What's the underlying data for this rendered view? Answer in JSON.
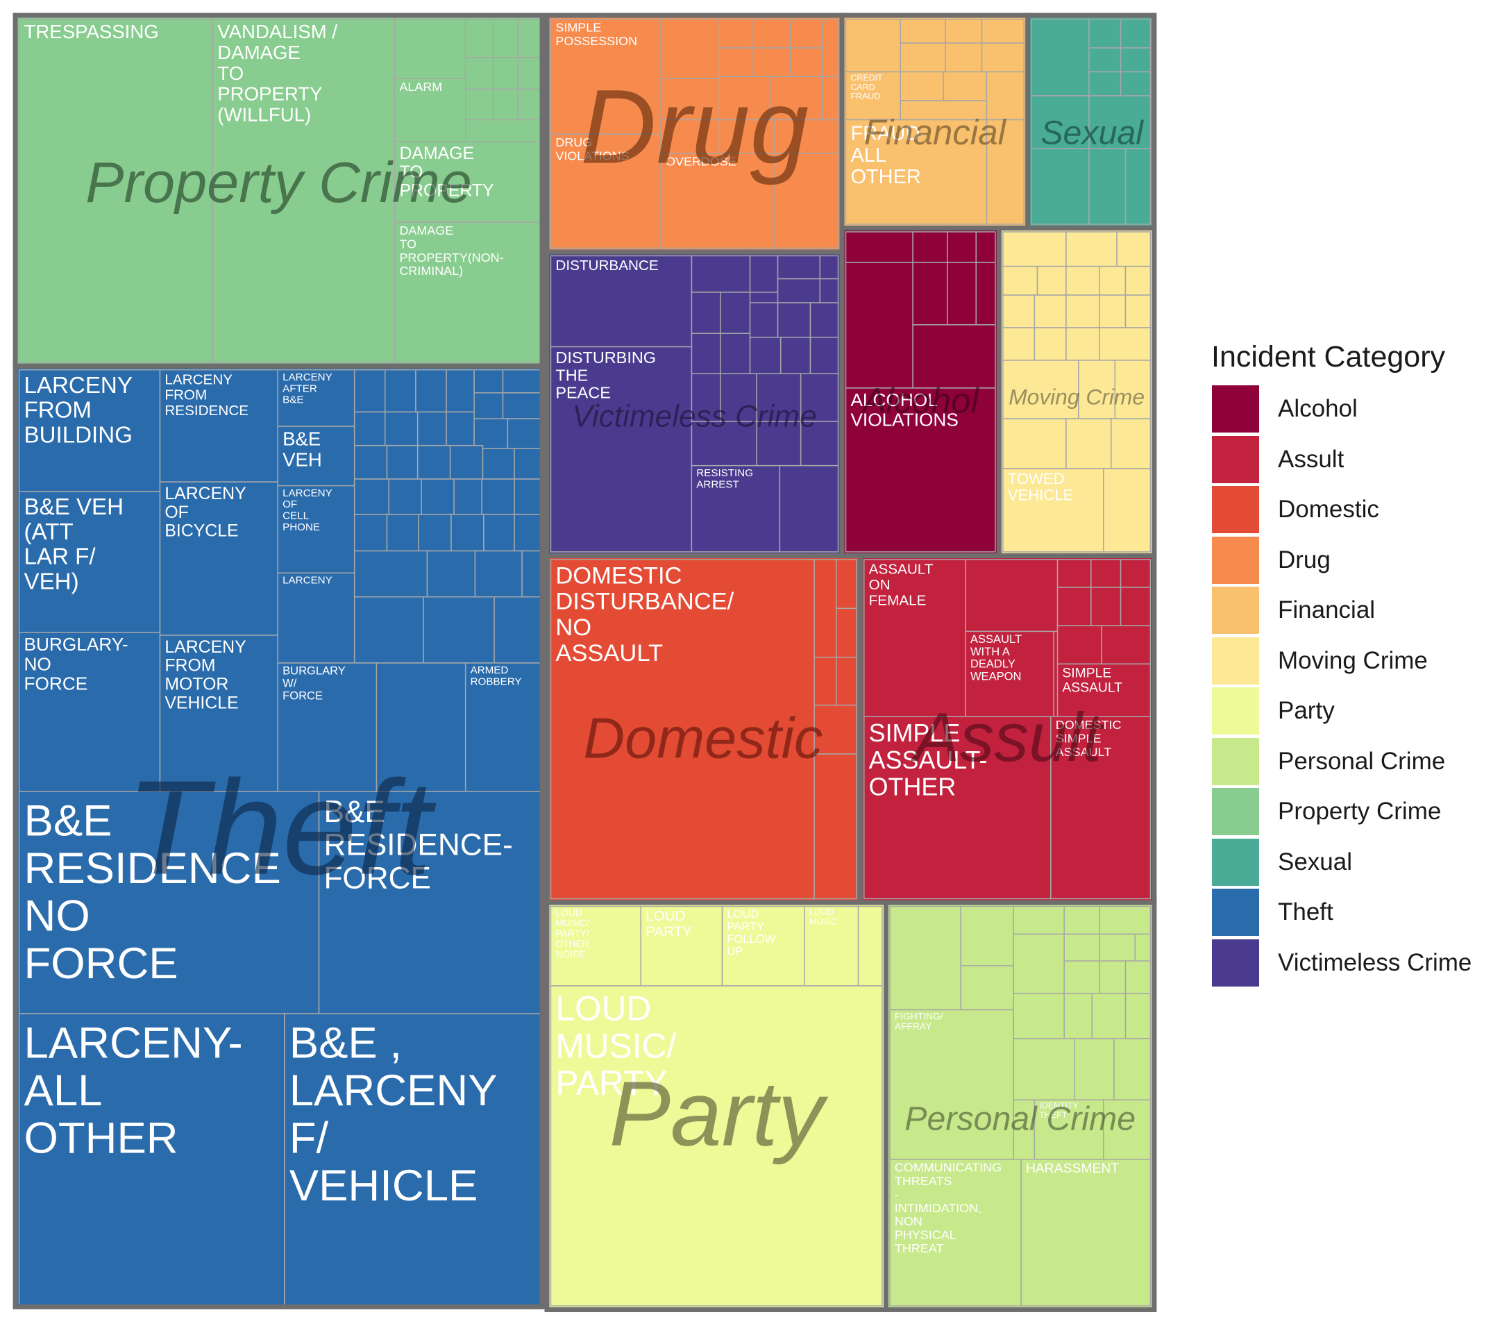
{
  "chart_data": {
    "type": "treemap",
    "legend": {
      "title": "Incident Category",
      "position": "right",
      "items": [
        {
          "label": "Alcohol",
          "color": "#8e0139"
        },
        {
          "label": "Assult",
          "color": "#c2223e"
        },
        {
          "label": "Domestic",
          "color": "#e44b35"
        },
        {
          "label": "Drug",
          "color": "#f78b4e"
        },
        {
          "label": "Financial",
          "color": "#f9c06e"
        },
        {
          "label": "Moving Crime",
          "color": "#fde896"
        },
        {
          "label": "Party",
          "color": "#eefa97"
        },
        {
          "label": "Personal Crime",
          "color": "#c7e98b"
        },
        {
          "label": "Property Crime",
          "color": "#88cd8f"
        },
        {
          "label": "Sexual",
          "color": "#4aab97"
        },
        {
          "label": "Theft",
          "color": "#2a6bac"
        },
        {
          "label": "Victimeless Crime",
          "color": "#4b3b8f"
        }
      ]
    },
    "groups": [
      {
        "category": "Theft",
        "label": "Theft",
        "leaves": [
          "B&E RESIDENCE NO FORCE",
          "LARCENY-ALL OTHER",
          "B&E , LARCENY F/ VEHICLE",
          "B&E RESIDENCE-FORCE",
          "LARCENY FROM BUILDING",
          "B&E VEH (ATT LAR F/ VEH)",
          "BURGLARY-NO FORCE",
          "LARCENY FROM RESIDENCE",
          "LARCENY OF BICYCLE",
          "LARCENY FROM MOTOR VEHICLE",
          "LARCENY AFTER B&E",
          "B&E VEH",
          "LARCENY OF CELL PHONE",
          "LARCENY",
          "BURGLARY W/ FORCE",
          "ARMED ROBBERY"
        ]
      },
      {
        "category": "Property Crime",
        "label": "Property Crime",
        "leaves": [
          "TRESPASSING",
          "VANDALISM / DAMAGE TO PROPERTY (WILLFUL)",
          "ALARM",
          "DAMAGE TO PROPERTY",
          "DAMAGE TO PROPERTY(NON-CRIMINAL)"
        ]
      },
      {
        "category": "Drug",
        "label": "Drug",
        "leaves": [
          "SIMPLE POSSESSION",
          "DRUG VIOLATIONS",
          "OVERDOSE"
        ]
      },
      {
        "category": "Financial",
        "label": "Financial",
        "leaves": [
          "CREDIT CARD FRAUD",
          "FRAUD-ALL OTHER"
        ]
      },
      {
        "category": "Sexual",
        "label": "Sexual",
        "leaves": []
      },
      {
        "category": "Victimeless Crime",
        "label": "Victimeless Crime",
        "leaves": [
          "DISTURBANCE",
          "DISTURBING THE PEACE",
          "RESISTING ARREST"
        ]
      },
      {
        "category": "Alcohol",
        "label": "Alcohol",
        "leaves": [
          "ALCOHOL VIOLATIONS"
        ]
      },
      {
        "category": "Moving Crime",
        "label": "Moving Crime",
        "leaves": [
          "TOWED VEHICLE"
        ]
      },
      {
        "category": "Domestic",
        "label": "Domestic",
        "leaves": [
          "DOMESTIC DISTURBANCE/ NO ASSAULT"
        ]
      },
      {
        "category": "Assult",
        "label": "Assult",
        "leaves": [
          "ASSAULT ON FEMALE",
          "ASSAULT WITH A DEADLY WEAPON",
          "SIMPLE ASSAULT",
          "SIMPLE ASSAULT-OTHER",
          "DOMESTIC SIMPLE ASSAULT"
        ]
      },
      {
        "category": "Party",
        "label": "Party",
        "leaves": [
          "LOUD MUSIC/ PARTY/ OTHER NOISE",
          "LOUD PARTY",
          "LOUD PARTY FOLLOW UP",
          "LOUD MUSIC",
          "LOUD MUSIC/ PARTY"
        ]
      },
      {
        "category": "Personal Crime",
        "label": "Personal Crime",
        "leaves": [
          "FIGHTING/ AFFRAY",
          "IDENTITY THEFT",
          "COMMUNICATING THREATS - INTIMIDATION, NON PHYSICAL THREAT",
          "HARASSMENT"
        ]
      }
    ]
  }
}
